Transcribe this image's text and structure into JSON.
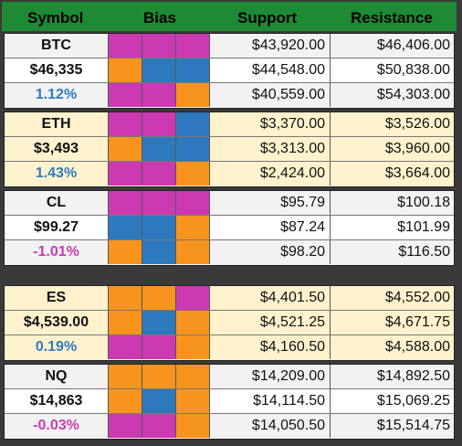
{
  "header": {
    "symbol": "Symbol",
    "bias": "Bias",
    "support": "Support",
    "resistance": "Resistance"
  },
  "colors": {
    "header_bg": "#1e8a34",
    "bias_magenta": "#cc3ab2",
    "bias_blue": "#2e78bd",
    "bias_orange": "#f7941d",
    "row_light": "#f2f2f2",
    "row_white": "#ffffff",
    "row_cream": "#fff2cc",
    "pct_positive": "#2e7cc4",
    "pct_negative": "#cc3ab2"
  },
  "groups": [
    {
      "name": "BTC",
      "price": "$46,335",
      "change": "1.12%",
      "direction": "positive",
      "rows": [
        {
          "bias": [
            "magenta",
            "magenta",
            "magenta"
          ],
          "support": "$43,920.00",
          "resistance": "$46,406.00"
        },
        {
          "bias": [
            "orange",
            "blue",
            "blue"
          ],
          "support": "$44,548.00",
          "resistance": "$50,838.00"
        },
        {
          "bias": [
            "magenta",
            "magenta",
            "orange"
          ],
          "support": "$40,559.00",
          "resistance": "$54,303.00"
        }
      ],
      "row_bgs": [
        "light",
        "white",
        "light"
      ]
    },
    {
      "name": "ETH",
      "price": "$3,493",
      "change": "1.43%",
      "direction": "positive",
      "rows": [
        {
          "bias": [
            "magenta",
            "magenta",
            "blue"
          ],
          "support": "$3,370.00",
          "resistance": "$3,526.00"
        },
        {
          "bias": [
            "orange",
            "blue",
            "blue"
          ],
          "support": "$3,313.00",
          "resistance": "$3,960.00"
        },
        {
          "bias": [
            "magenta",
            "magenta",
            "orange"
          ],
          "support": "$2,424.00",
          "resistance": "$3,664.00"
        }
      ],
      "row_bgs": [
        "cream",
        "cream",
        "cream"
      ]
    },
    {
      "name": "CL",
      "price": "$99.27",
      "change": "-1.01%",
      "direction": "negative",
      "rows": [
        {
          "bias": [
            "magenta",
            "magenta",
            "magenta"
          ],
          "support": "$95.79",
          "resistance": "$100.18"
        },
        {
          "bias": [
            "blue",
            "blue",
            "orange"
          ],
          "support": "$87.24",
          "resistance": "$101.99"
        },
        {
          "bias": [
            "orange",
            "blue",
            "orange"
          ],
          "support": "$98.20",
          "resistance": "$116.50"
        }
      ],
      "row_bgs": [
        "light",
        "white",
        "light"
      ]
    },
    {
      "name": "ES",
      "price": "$4,539.00",
      "change": "0.19%",
      "direction": "positive",
      "rows": [
        {
          "bias": [
            "orange",
            "orange",
            "magenta"
          ],
          "support": "$4,401.50",
          "resistance": "$4,552.00"
        },
        {
          "bias": [
            "orange",
            "blue",
            "orange"
          ],
          "support": "$4,521.25",
          "resistance": "$4,671.75"
        },
        {
          "bias": [
            "magenta",
            "magenta",
            "orange"
          ],
          "support": "$4,160.50",
          "resistance": "$4,588.00"
        }
      ],
      "row_bgs": [
        "cream",
        "cream",
        "cream"
      ]
    },
    {
      "name": "NQ",
      "price": "$14,863",
      "change": "-0.03%",
      "direction": "negative",
      "rows": [
        {
          "bias": [
            "orange",
            "orange",
            "orange"
          ],
          "support": "$14,209.00",
          "resistance": "$14,892.50"
        },
        {
          "bias": [
            "orange",
            "blue",
            "orange"
          ],
          "support": "$14,114.50",
          "resistance": "$15,069.25"
        },
        {
          "bias": [
            "magenta",
            "magenta",
            "orange"
          ],
          "support": "$14,050.50",
          "resistance": "$15,514.75"
        }
      ],
      "row_bgs": [
        "light",
        "white",
        "light"
      ]
    }
  ]
}
